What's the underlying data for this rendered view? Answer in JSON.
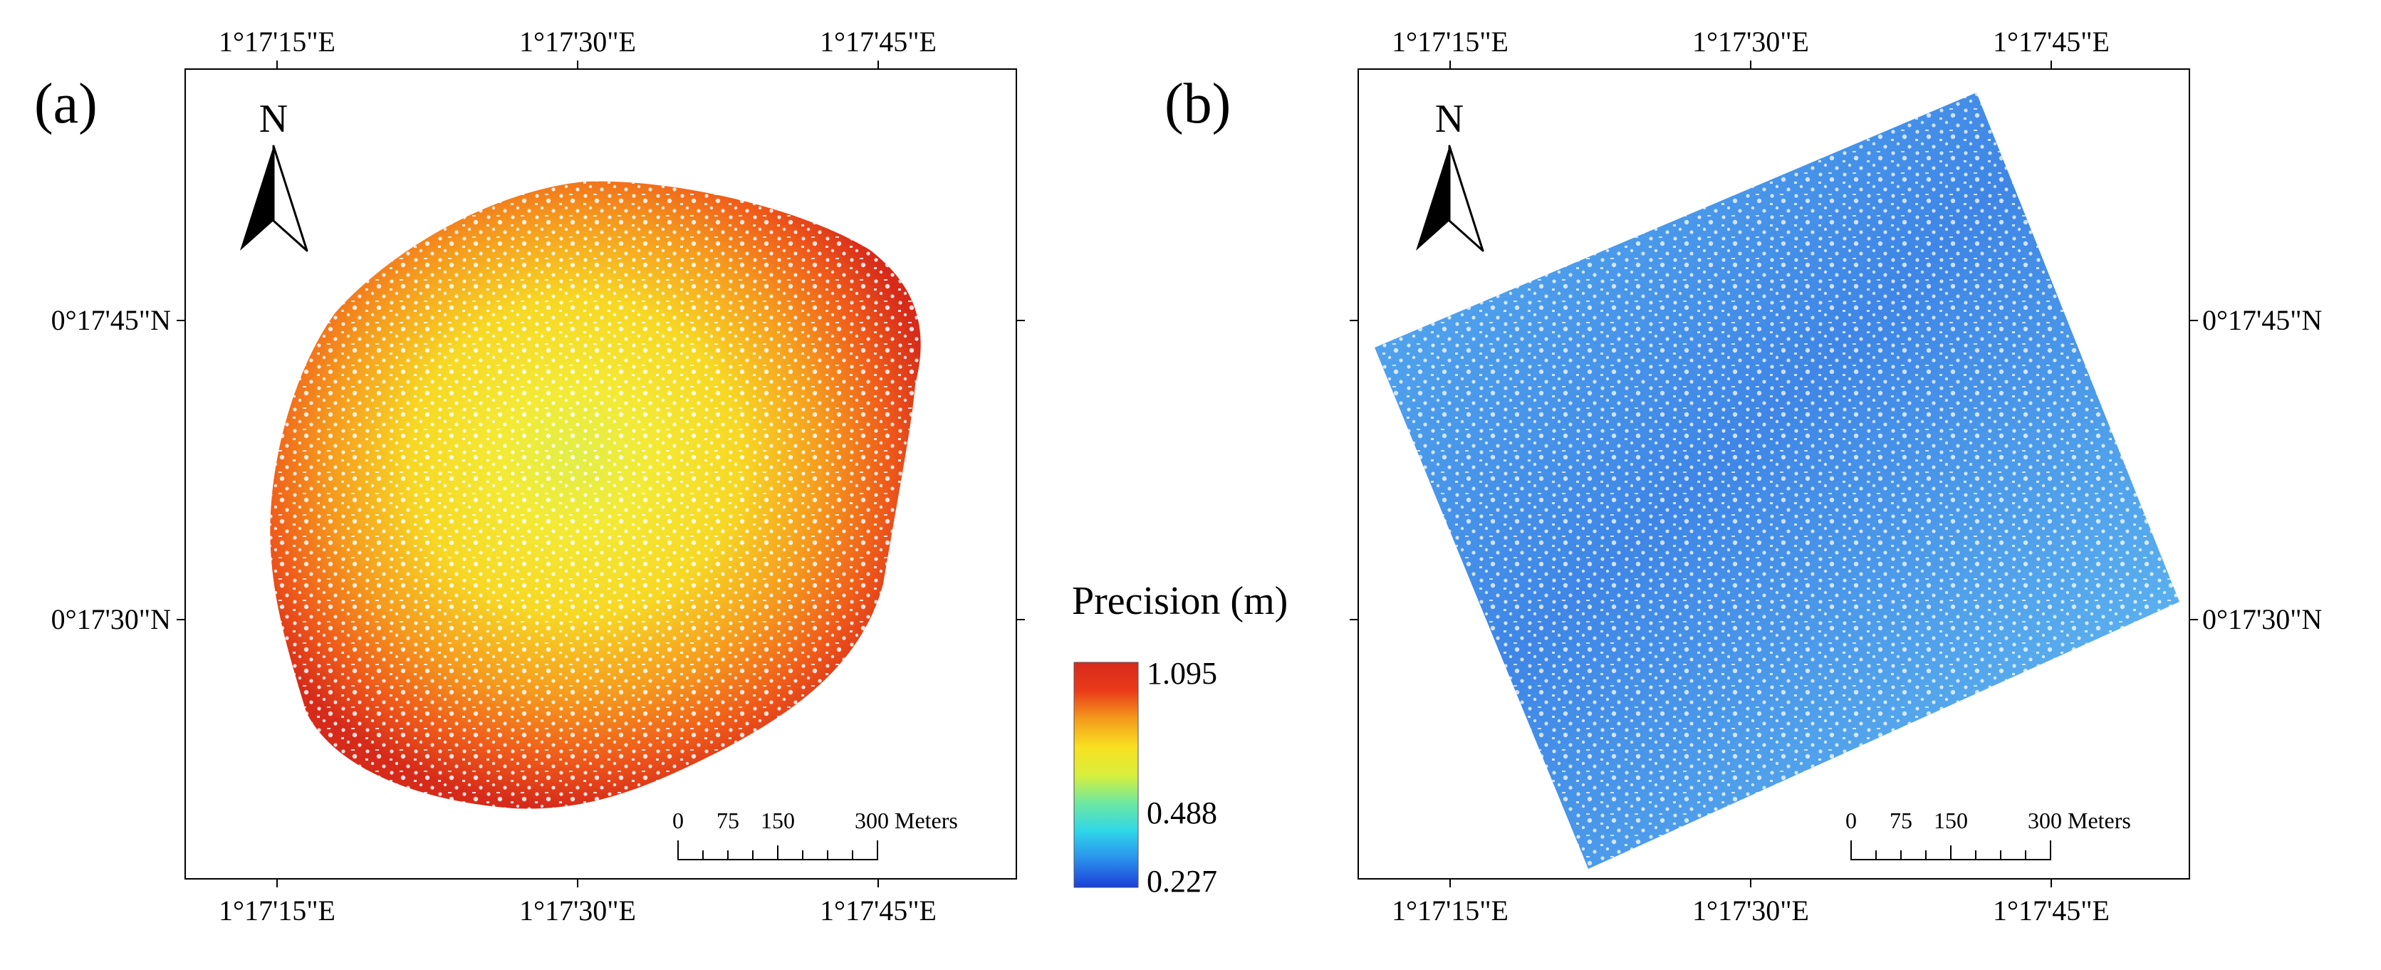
{
  "panels": [
    {
      "label": "(a)",
      "lon_ticks": [
        "1°17'15\"E",
        "1°17'30\"E",
        "1°17'45\"E"
      ],
      "lat_ticks": [
        "0°17'45\"N",
        "0°17'30\"N"
      ],
      "north_label": "N",
      "scale_labels": [
        "0",
        "75",
        "150",
        "300 Meters"
      ],
      "surface": "precision map over a roughly circular survey footprint; highest values (red) at the rim, lowest (yellow / yellow-green) in the centre"
    },
    {
      "label": "(b)",
      "lon_ticks": [
        "1°17'15\"E",
        "1°17'30\"E",
        "1°17'45\"E"
      ],
      "lat_ticks": [
        "0°17'45\"N",
        "0°17'30\"N"
      ],
      "north_label": "N",
      "scale_labels": [
        "0",
        "75",
        "150",
        "300 Meters"
      ],
      "surface": "precision map over a rotated rectangular survey block; uniformly low values (blue to light blue)"
    }
  ],
  "legend": {
    "title": "Precision (m)",
    "max": "1.095",
    "mid": "0.488",
    "min": "0.227",
    "colors": [
      "#1c3fd8",
      "#2a8fec",
      "#2fd7e9",
      "#6ee8a1",
      "#d9ef3c",
      "#f8e020",
      "#f49a1c",
      "#ea3a1a",
      "#d82a1c"
    ]
  }
}
